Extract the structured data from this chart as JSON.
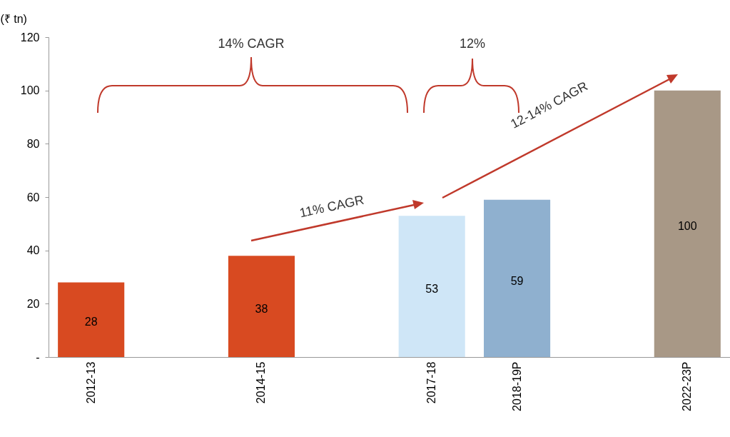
{
  "chart_data": {
    "type": "bar",
    "ylabel": "(₹ tn)",
    "categories": [
      "2012-13",
      null,
      "2014-15",
      null,
      "2017-18",
      "2018-19P",
      null,
      "2022-23P"
    ],
    "values": [
      28,
      null,
      38,
      null,
      53,
      59,
      null,
      100
    ],
    "colors": [
      "#d84a21",
      null,
      "#d84a21",
      null,
      "#cfe6f7",
      "#8fb0cf",
      null,
      "#a89886"
    ],
    "ylim": [
      0,
      120
    ],
    "yticks": [
      {
        "value": 0,
        "label": "-"
      },
      20,
      40,
      60,
      80,
      100,
      120
    ],
    "data_labels": true,
    "grid": false,
    "annotations": [
      "14% CAGR",
      "12%",
      "11% CAGR",
      "12-14% CAGR"
    ]
  }
}
